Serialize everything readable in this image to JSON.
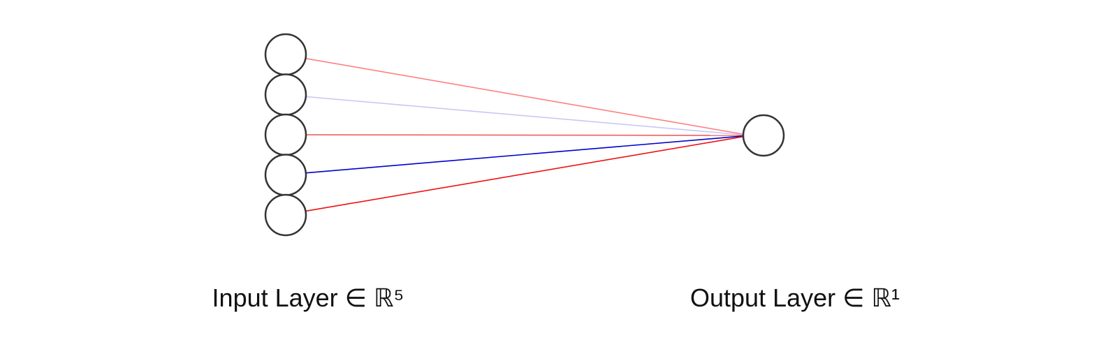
{
  "layers": [
    {
      "name": "input",
      "label": "Input Layer ∈ ℝ⁵",
      "neurons": 5
    },
    {
      "name": "output",
      "label": "Output Layer ∈ ℝ¹",
      "neurons": 1
    }
  ],
  "connections": [
    {
      "from": 0,
      "to": 0,
      "color": "#ff8080"
    },
    {
      "from": 1,
      "to": 0,
      "color": "#c8c8f5"
    },
    {
      "from": 2,
      "to": 0,
      "color": "#ee6060"
    },
    {
      "from": 3,
      "to": 0,
      "color": "#0000cc"
    },
    {
      "from": 4,
      "to": 0,
      "color": "#ee1111"
    }
  ],
  "colors": {
    "neuron_stroke": "#333333",
    "neuron_fill": "#ffffff",
    "text": "#111111",
    "background": "#ffffff"
  }
}
